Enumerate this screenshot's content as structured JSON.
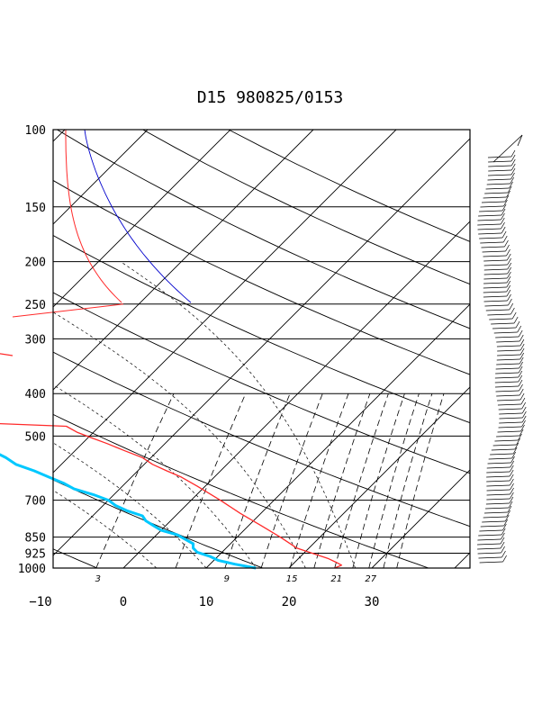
{
  "chart_data": {
    "type": "line",
    "title": "D15 980825/0153",
    "pressure_ticks": [
      "100",
      "150",
      "200",
      "250",
      "300",
      "400",
      "500",
      "700",
      "850",
      "925",
      "1000"
    ],
    "pressure_values": [
      100,
      150,
      200,
      250,
      300,
      400,
      500,
      700,
      850,
      925,
      1000
    ],
    "temperature_ticks": [
      "−10",
      "0",
      "10",
      "20",
      "30"
    ],
    "temperature_values": [
      -10,
      0,
      10,
      20,
      30
    ],
    "mixing_ratio_labels": [
      "3",
      "9",
      "15",
      "21",
      "27"
    ],
    "pressure_range": [
      100,
      1000
    ],
    "temperature_range_at_surface": [
      -10,
      40
    ],
    "skew": "temperature isotherms skewed 45 degrees",
    "grid": true,
    "colors": {
      "temperature": "#ff2a2a",
      "dewpoint": "#00c8ff",
      "reference_curve_red": "#ff2a2a",
      "reference_curve_blue": "#0000cc",
      "grid": "#000000"
    },
    "series": [
      {
        "kind": "temperature",
        "points": [
          {
            "p": 1000,
            "t": 25.5
          },
          {
            "p": 985,
            "t": 26.0
          },
          {
            "p": 970,
            "t": 25.0
          },
          {
            "p": 950,
            "t": 23.5
          },
          {
            "p": 925,
            "t": 21.0
          },
          {
            "p": 900,
            "t": 18.5
          },
          {
            "p": 850,
            "t": 15.2
          },
          {
            "p": 800,
            "t": 11.5
          },
          {
            "p": 750,
            "t": 7.5
          },
          {
            "p": 700,
            "t": 3.5
          },
          {
            "p": 650,
            "t": -1.0
          },
          {
            "p": 620,
            "t": -4.0
          },
          {
            "p": 600,
            "t": -6.5
          },
          {
            "p": 580,
            "t": -9.0
          },
          {
            "p": 560,
            "t": -11.0
          },
          {
            "p": 540,
            "t": -14.0
          },
          {
            "p": 520,
            "t": -17.0
          },
          {
            "p": 505,
            "t": -19.5
          },
          {
            "p": 490,
            "t": -22.0
          },
          {
            "p": 475,
            "t": -24.0
          },
          {
            "p": 465,
            "t": -37.0
          },
          {
            "p": 458,
            "t": -52.0
          },
          {
            "p": 440,
            "t": -49.0
          },
          {
            "p": 420,
            "t": -50.5
          },
          {
            "p": 400,
            "t": -51.5
          },
          {
            "p": 380,
            "t": -55.0
          },
          {
            "p": 350,
            "t": -59.0
          },
          {
            "p": 320,
            "t": -65.0
          },
          {
            "p": 300,
            "t": -68.0
          },
          {
            "p": 280,
            "t": -73.0
          },
          {
            "p": 262,
            "t": -78.0
          }
        ]
      },
      {
        "kind": "dewpoint",
        "points": [
          {
            "p": 1000,
            "t": 16.0
          },
          {
            "p": 980,
            "t": 13.0
          },
          {
            "p": 960,
            "t": 10.5
          },
          {
            "p": 940,
            "t": 9.0
          },
          {
            "p": 920,
            "t": 7.0
          },
          {
            "p": 900,
            "t": 6.0
          },
          {
            "p": 880,
            "t": 5.5
          },
          {
            "p": 860,
            "t": 4.0
          },
          {
            "p": 840,
            "t": 2.5
          },
          {
            "p": 820,
            "t": 0.0
          },
          {
            "p": 800,
            "t": -1.5
          },
          {
            "p": 780,
            "t": -3.0
          },
          {
            "p": 760,
            "t": -4.0
          },
          {
            "p": 740,
            "t": -6.5
          },
          {
            "p": 720,
            "t": -8.5
          },
          {
            "p": 700,
            "t": -10.0
          },
          {
            "p": 680,
            "t": -12.5
          },
          {
            "p": 660,
            "t": -15.5
          },
          {
            "p": 640,
            "t": -17.5
          },
          {
            "p": 620,
            "t": -20.0
          },
          {
            "p": 600,
            "t": -22.5
          },
          {
            "p": 580,
            "t": -25.5
          },
          {
            "p": 560,
            "t": -27.5
          },
          {
            "p": 540,
            "t": -30.0
          },
          {
            "p": 520,
            "t": -32.0
          },
          {
            "p": 500,
            "t": -34.0
          },
          {
            "p": 480,
            "t": -35.5
          },
          {
            "p": 460,
            "t": -38.0
          },
          {
            "p": 440,
            "t": -40.5
          },
          {
            "p": 420,
            "t": -43.0
          },
          {
            "p": 400,
            "t": -46.0
          },
          {
            "p": 380,
            "t": -49.0
          },
          {
            "p": 360,
            "t": -52.5
          },
          {
            "p": 340,
            "t": -56.0
          },
          {
            "p": 320,
            "t": -59.5
          },
          {
            "p": 300,
            "t": -63.0
          },
          {
            "p": 285,
            "t": -66.5
          },
          {
            "p": 270,
            "t": -70.0
          },
          {
            "p": 255,
            "t": -73.0
          },
          {
            "p": 240,
            "t": -76.5
          }
        ]
      }
    ]
  }
}
